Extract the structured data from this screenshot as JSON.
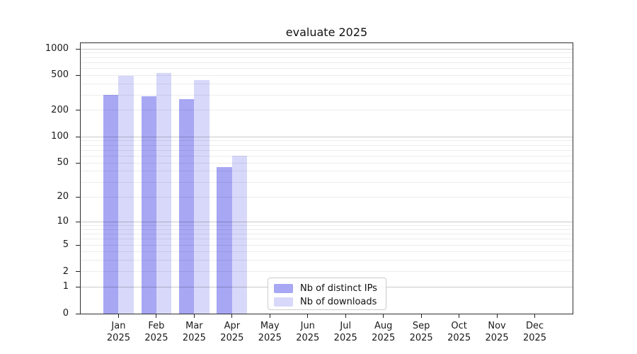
{
  "chart_data": {
    "type": "bar",
    "title": "evaluate 2025",
    "categories": [
      "Jan",
      "Feb",
      "Mar",
      "Apr",
      "May",
      "Jun",
      "Jul",
      "Aug",
      "Sep",
      "Oct",
      "Nov",
      "Dec"
    ],
    "x_tick_second_line": "2025",
    "series": [
      {
        "name": "Nb of distinct IPs",
        "color": "#a7a7f4",
        "values": [
          300,
          290,
          270,
          45,
          0,
          0,
          0,
          0,
          0,
          0,
          0,
          0
        ]
      },
      {
        "name": "Nb of downloads",
        "color": "#d8d8fa",
        "values": [
          500,
          530,
          440,
          60,
          0,
          0,
          0,
          0,
          0,
          0,
          0,
          0
        ]
      }
    ],
    "yscale": "log1p",
    "ylim": [
      0,
      1160
    ],
    "yticks": [
      0,
      1,
      2,
      5,
      10,
      20,
      50,
      100,
      200,
      500,
      1000
    ],
    "grid": {
      "enabled": true,
      "major_values": [
        1,
        10,
        100,
        1000
      ],
      "minor_color": "rgba(0,0,0,0.075)",
      "major_color": "rgba(0,0,0,0.21)"
    },
    "legend": {
      "position": "lower center",
      "entries": [
        "Nb of distinct IPs",
        "Nb of downloads"
      ]
    },
    "xlabel": "",
    "ylabel": ""
  }
}
